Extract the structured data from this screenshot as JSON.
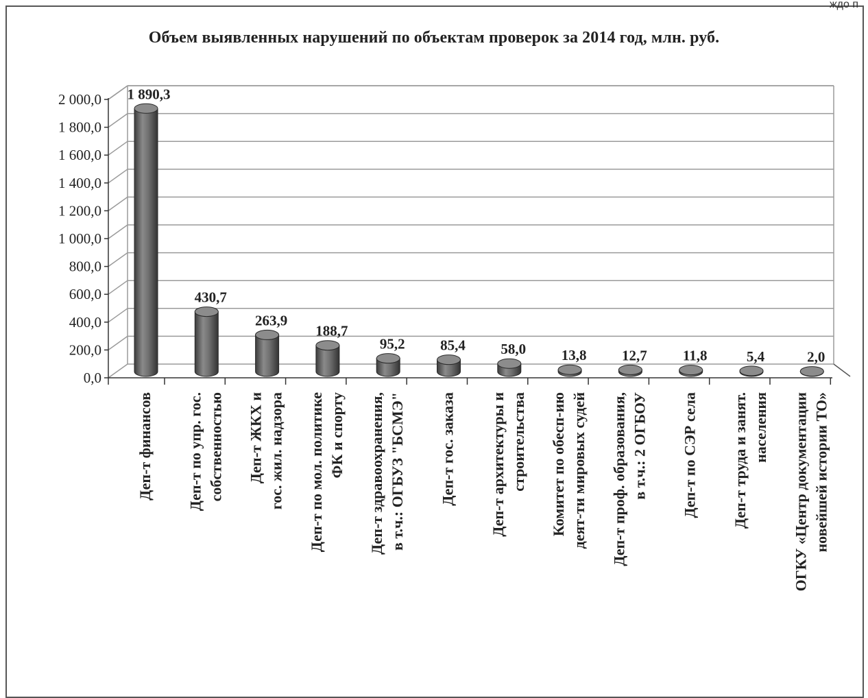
{
  "corner_text": "ждо п",
  "chart_data": {
    "type": "bar",
    "title": "Объем выявленных нарушений по объектам проверок за 2014 год, млн. руб.",
    "xlabel": "",
    "ylabel": "",
    "ylim": [
      0,
      2000
    ],
    "y_ticks": [
      "0,0",
      "200,0",
      "400,0",
      "600,0",
      "800,0",
      "1 000,0",
      "1 200,0",
      "1 400,0",
      "1 600,0",
      "1 800,0",
      "2 000,0"
    ],
    "grid": true,
    "legend": "none",
    "bar_color": "#6e6e6e",
    "categories": [
      [
        "Деп-т финансов"
      ],
      [
        "Деп-т по упр. гос.",
        "собственностью"
      ],
      [
        "Деп-т ЖКХ и",
        "гос. жил. надзора"
      ],
      [
        "Деп-т по мол. политике",
        "ФК и спорту"
      ],
      [
        "Деп-т здравоохранения,",
        "в т.ч.: ОГБУЗ \"БСМЭ\""
      ],
      [
        "Деп-т гос. заказа"
      ],
      [
        "Деп-т архитектуры и",
        "строительства"
      ],
      [
        "Комитет по обесп-ию",
        "деят-ти мировых судей"
      ],
      [
        "Деп-т проф. образования,",
        "в т.ч.: 2 ОГБОУ"
      ],
      [
        "Деп-т по СЭР села"
      ],
      [
        "Деп-т труда и занят.",
        "населения"
      ],
      [
        "ОГКУ «Центр документации",
        "новейшей истории ТО»"
      ]
    ],
    "values": [
      1890.3,
      430.7,
      263.9,
      188.7,
      95.2,
      85.4,
      58.0,
      13.8,
      12.7,
      11.8,
      5.4,
      2.0
    ],
    "value_labels": [
      "1 890,3",
      "430,7",
      "263,9",
      "188,7",
      "95,2",
      "85,4",
      "58,0",
      "13,8",
      "12,7",
      "11,8",
      "5,4",
      "2,0"
    ]
  }
}
